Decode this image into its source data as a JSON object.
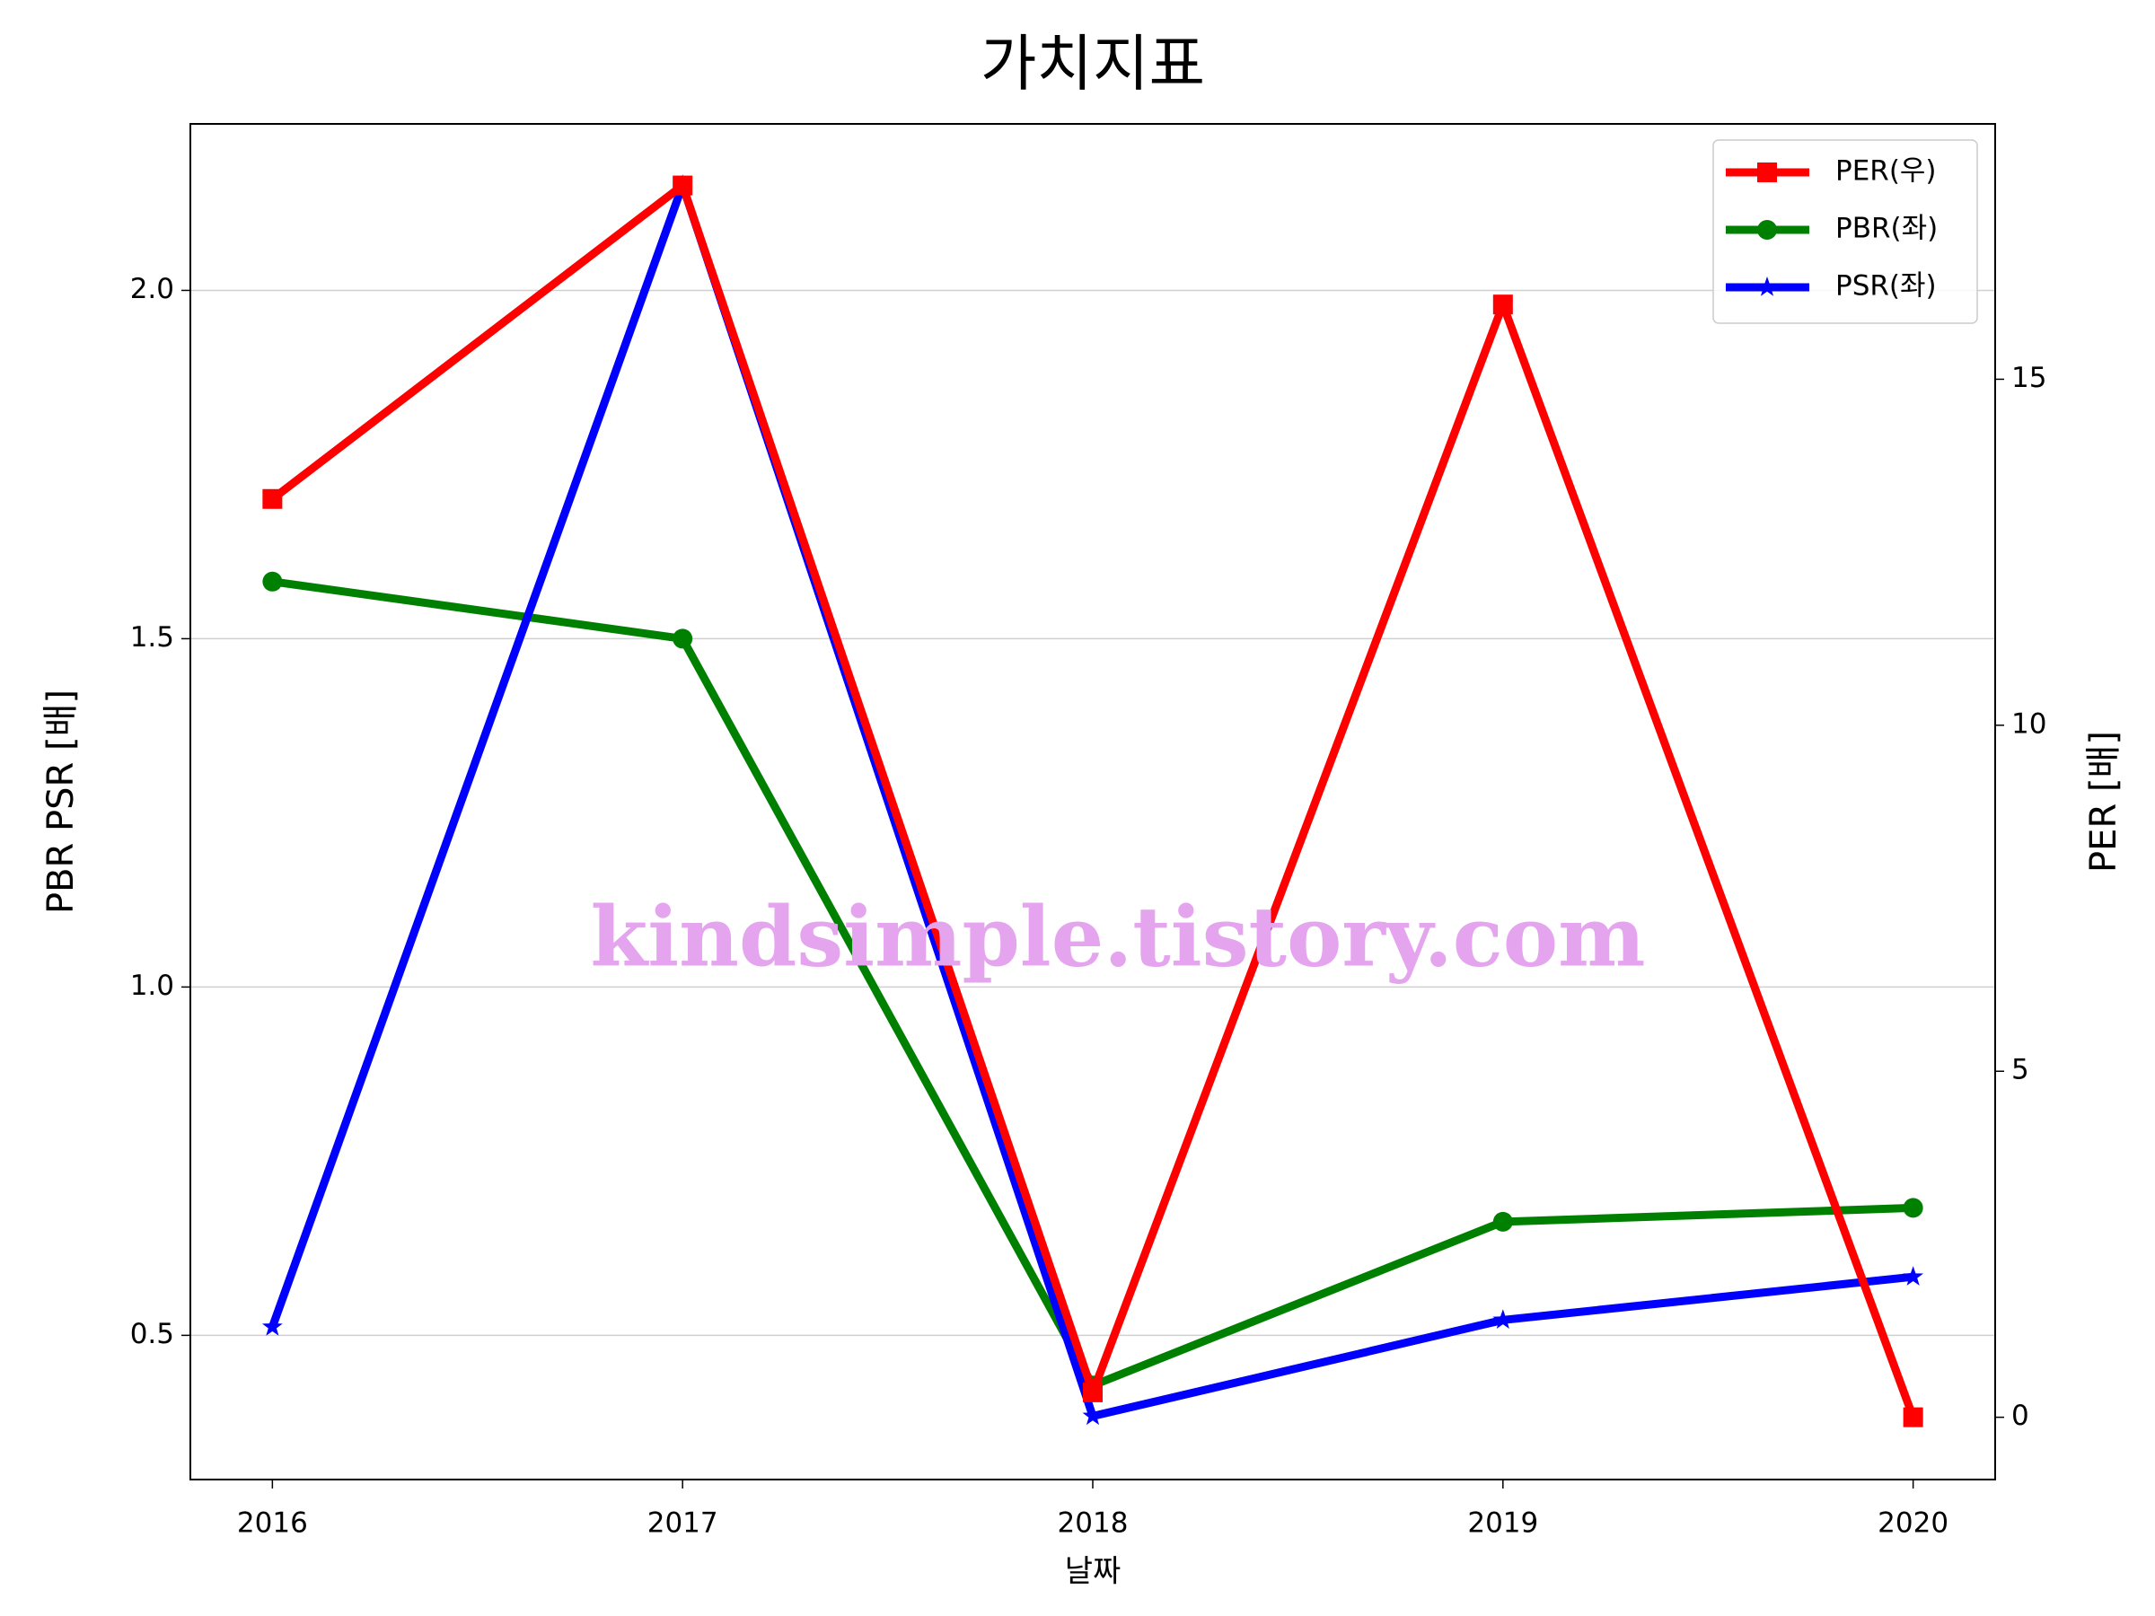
{
  "chart_data": {
    "type": "line",
    "title": "가치지표",
    "xlabel": "날짜",
    "ylabel": "PBR PSR [배]",
    "y2label": "PER [배]",
    "ylabel_color": "#008000",
    "y2label_color": "#ff0000",
    "x": [
      2016,
      2017,
      2018,
      2019,
      2020
    ],
    "xlim": [
      2015.8,
      2020.2
    ],
    "xticks": [
      2016,
      2017,
      2018,
      2019,
      2020
    ],
    "ylim": [
      0.293,
      2.239
    ],
    "yticks": [
      {
        "value": 0.5,
        "label": "0.5"
      },
      {
        "value": 1.0,
        "label": "1.0"
      },
      {
        "value": 1.5,
        "label": "1.5"
      },
      {
        "value": 2.0,
        "label": "2.0"
      }
    ],
    "y2lim": [
      -0.9,
      18.69
    ],
    "y2ticks": [
      0,
      5,
      10,
      15
    ],
    "grid": true,
    "legend": "upper right",
    "annotation": "kindsimple.tistory.com",
    "series": [
      {
        "name": "PER(우)",
        "color": "#ff0000",
        "marker": "square",
        "axis": "y2",
        "values": [
          13.27,
          17.8,
          0.36,
          16.08,
          0.0
        ]
      },
      {
        "name": "PBR(좌)",
        "color": "#008000",
        "marker": "circle",
        "values": [
          1.582,
          1.5,
          0.428,
          0.663,
          0.683
        ]
      },
      {
        "name": "PSR(좌)",
        "color": "#0000ff",
        "marker": "star",
        "values": [
          0.512,
          2.151,
          0.384,
          0.522,
          0.584
        ]
      }
    ]
  }
}
